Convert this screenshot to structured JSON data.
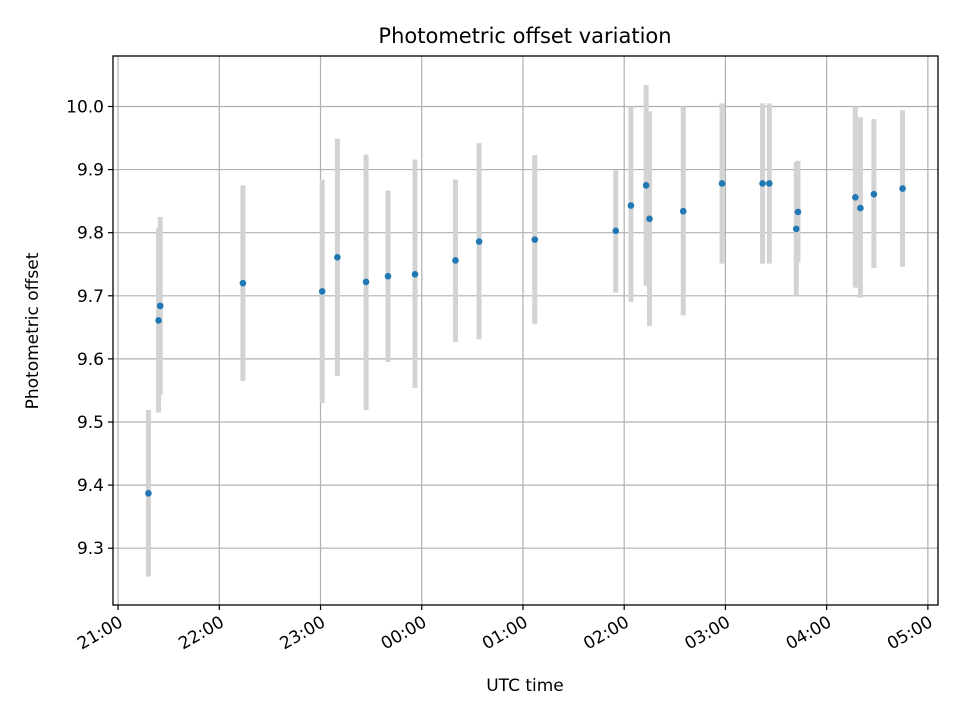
{
  "chart_data": {
    "type": "scatter",
    "title": "Photometric offset variation",
    "xlabel": "UTC time",
    "ylabel": "Photometric offset",
    "x_axis": {
      "kind": "time",
      "range": [
        "20:57",
        "05:06"
      ],
      "ticks": [
        "21:00",
        "22:00",
        "23:00",
        "00:00",
        "01:00",
        "02:00",
        "03:00",
        "04:00",
        "05:00"
      ]
    },
    "y_axis": {
      "range": [
        9.21,
        10.08
      ],
      "ticks": [
        "9.3",
        "9.4",
        "9.5",
        "9.6",
        "9.7",
        "9.8",
        "9.9",
        "10.0"
      ]
    },
    "grid": true,
    "colors": {
      "marker": "#1f77b4",
      "errorbar": "#d3d3d3",
      "grid": "#b0b0b0"
    },
    "points": [
      {
        "time": "21:18",
        "y": 9.387,
        "err_low": 9.255,
        "err_high": 9.519
      },
      {
        "time": "21:24",
        "y": 9.661,
        "err_low": 9.515,
        "err_high": 9.807
      },
      {
        "time": "21:25",
        "y": 9.684,
        "err_low": 9.543,
        "err_high": 9.825
      },
      {
        "time": "22:14",
        "y": 9.72,
        "err_low": 9.565,
        "err_high": 9.875
      },
      {
        "time": "23:01",
        "y": 9.707,
        "err_low": 9.53,
        "err_high": 9.884
      },
      {
        "time": "23:10",
        "y": 9.761,
        "err_low": 9.573,
        "err_high": 9.949
      },
      {
        "time": "23:27",
        "y": 9.722,
        "err_low": 9.519,
        "err_high": 9.924
      },
      {
        "time": "23:40",
        "y": 9.731,
        "err_low": 9.595,
        "err_high": 9.867
      },
      {
        "time": "23:56",
        "y": 9.734,
        "err_low": 9.554,
        "err_high": 9.916
      },
      {
        "time": "00:20",
        "y": 9.756,
        "err_low": 9.627,
        "err_high": 9.884
      },
      {
        "time": "00:34",
        "y": 9.786,
        "err_low": 9.631,
        "err_high": 9.942
      },
      {
        "time": "01:07",
        "y": 9.789,
        "err_low": 9.655,
        "err_high": 9.923
      },
      {
        "time": "01:55",
        "y": 9.803,
        "err_low": 9.705,
        "err_high": 9.899
      },
      {
        "time": "02:04",
        "y": 9.843,
        "err_low": 9.69,
        "err_high": 10.0
      },
      {
        "time": "02:13",
        "y": 9.875,
        "err_low": 9.716,
        "err_high": 10.034
      },
      {
        "time": "02:15",
        "y": 9.822,
        "err_low": 9.652,
        "err_high": 9.992
      },
      {
        "time": "02:35",
        "y": 9.834,
        "err_low": 9.669,
        "err_high": 10.0
      },
      {
        "time": "02:58",
        "y": 9.878,
        "err_low": 9.751,
        "err_high": 10.005
      },
      {
        "time": "03:22",
        "y": 9.878,
        "err_low": 9.751,
        "err_high": 10.005
      },
      {
        "time": "03:26",
        "y": 9.878,
        "err_low": 9.751,
        "err_high": 10.005
      },
      {
        "time": "03:42",
        "y": 9.806,
        "err_low": 9.7,
        "err_high": 9.912
      },
      {
        "time": "03:43",
        "y": 9.833,
        "err_low": 9.753,
        "err_high": 9.914
      },
      {
        "time": "04:17",
        "y": 9.856,
        "err_low": 9.713,
        "err_high": 10.0
      },
      {
        "time": "04:20",
        "y": 9.839,
        "err_low": 9.697,
        "err_high": 9.983
      },
      {
        "time": "04:28",
        "y": 9.861,
        "err_low": 9.744,
        "err_high": 9.98
      },
      {
        "time": "04:45",
        "y": 9.87,
        "err_low": 9.746,
        "err_high": 9.994
      }
    ]
  }
}
